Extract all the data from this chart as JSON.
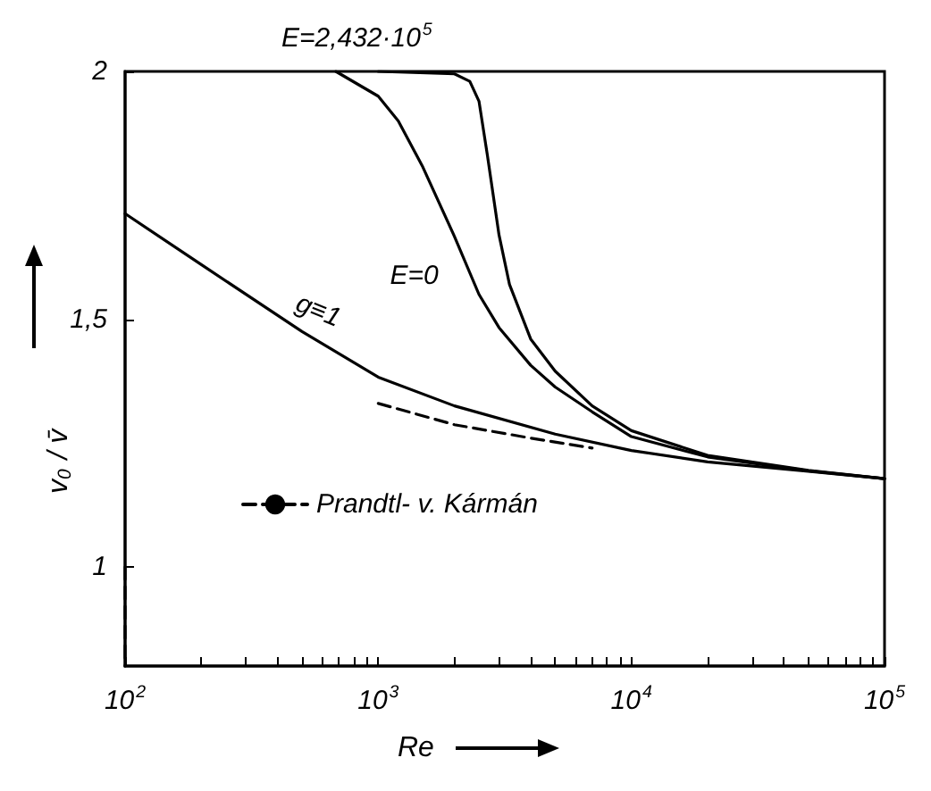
{
  "chart_data": {
    "type": "line",
    "xlabel": "Re",
    "ylabel": "v$_{0}$ / v̄",
    "log": "x",
    "grid": false,
    "legend": "bottom left",
    "marker": "none",
    "xlim": [
      100,
      100000
    ],
    "ylim": [
      0.8,
      2
    ],
    "xticks": [
      {
        "value": 100,
        "label": "10$^{2}$"
      },
      {
        "value": 200,
        "label": null
      },
      {
        "value": 300,
        "label": null
      },
      {
        "value": 400,
        "label": null
      },
      {
        "value": 500,
        "label": null
      },
      {
        "value": 600,
        "label": null
      },
      {
        "value": 700,
        "label": null
      },
      {
        "value": 800,
        "label": null
      },
      {
        "value": 900,
        "label": null
      },
      {
        "value": 1000,
        "label": "10$^{3}$"
      },
      {
        "value": 2000,
        "label": null
      },
      {
        "value": 3000,
        "label": null
      },
      {
        "value": 4000,
        "label": null
      },
      {
        "value": 5000,
        "label": null
      },
      {
        "value": 6000,
        "label": null
      },
      {
        "value": 7000,
        "label": null
      },
      {
        "value": 8000,
        "label": null
      },
      {
        "value": 9000,
        "label": null
      },
      {
        "value": 10000,
        "label": "10$^{4}$"
      },
      {
        "value": 20000,
        "label": null
      },
      {
        "value": 30000,
        "label": null
      },
      {
        "value": 40000,
        "label": null
      },
      {
        "value": 50000,
        "label": null
      },
      {
        "value": 60000,
        "label": null
      },
      {
        "value": 70000,
        "label": null
      },
      {
        "value": 80000,
        "label": null
      },
      {
        "value": 90000,
        "label": null
      },
      {
        "value": 100000,
        "label": "10$^{5}$"
      }
    ],
    "yticks": [
      1,
      {
        "value": 1.5,
        "label": "1,5"
      },
      2
    ],
    "series": [
      {
        "name": "g≡1",
        "color": "#000000",
        "line_style": "solid",
        "x": [
          100,
          200,
          500,
          1000,
          2000,
          5000,
          10000,
          20000,
          50000,
          100000
        ],
        "values": [
          1.713,
          1.61,
          1.475,
          1.383,
          1.325,
          1.268,
          1.235,
          1.212,
          1.193,
          1.178
        ]
      },
      {
        "name": "E=0",
        "color": "#000000",
        "line_style": "solid",
        "x": [
          680,
          1000,
          1200,
          1500,
          2000,
          2500,
          3000,
          4000,
          5000,
          7000,
          10000,
          20000,
          50000,
          100000
        ],
        "values": [
          2.0,
          1.95,
          1.9,
          1.807,
          1.667,
          1.55,
          1.483,
          1.407,
          1.363,
          1.313,
          1.263,
          1.222,
          1.194,
          1.178
        ]
      },
      {
        "name": "E=2,432·10$^{5}$",
        "color": "#000000",
        "line_style": "solid",
        "x": [
          1000,
          2000,
          2300,
          2500,
          2700,
          3000,
          3300,
          4000,
          5000,
          7000,
          10000,
          20000,
          50000,
          100000
        ],
        "values": [
          2.0,
          1.995,
          1.98,
          1.94,
          1.83,
          1.67,
          1.57,
          1.46,
          1.395,
          1.325,
          1.275,
          1.225,
          1.195,
          1.178
        ]
      },
      {
        "name": "Prandtl- v. Kármán",
        "color": "#000000",
        "line_style": "dashed",
        "x": [
          1000,
          2000,
          4000,
          7000
        ],
        "values": [
          1.33,
          1.287,
          1.26,
          1.24
        ]
      },
      {
        "color": "#000000",
        "line_style": "dashed",
        "x": [
          100,
          100
        ],
        "values": [
          1.0,
          0.8
        ]
      }
    ]
  }
}
